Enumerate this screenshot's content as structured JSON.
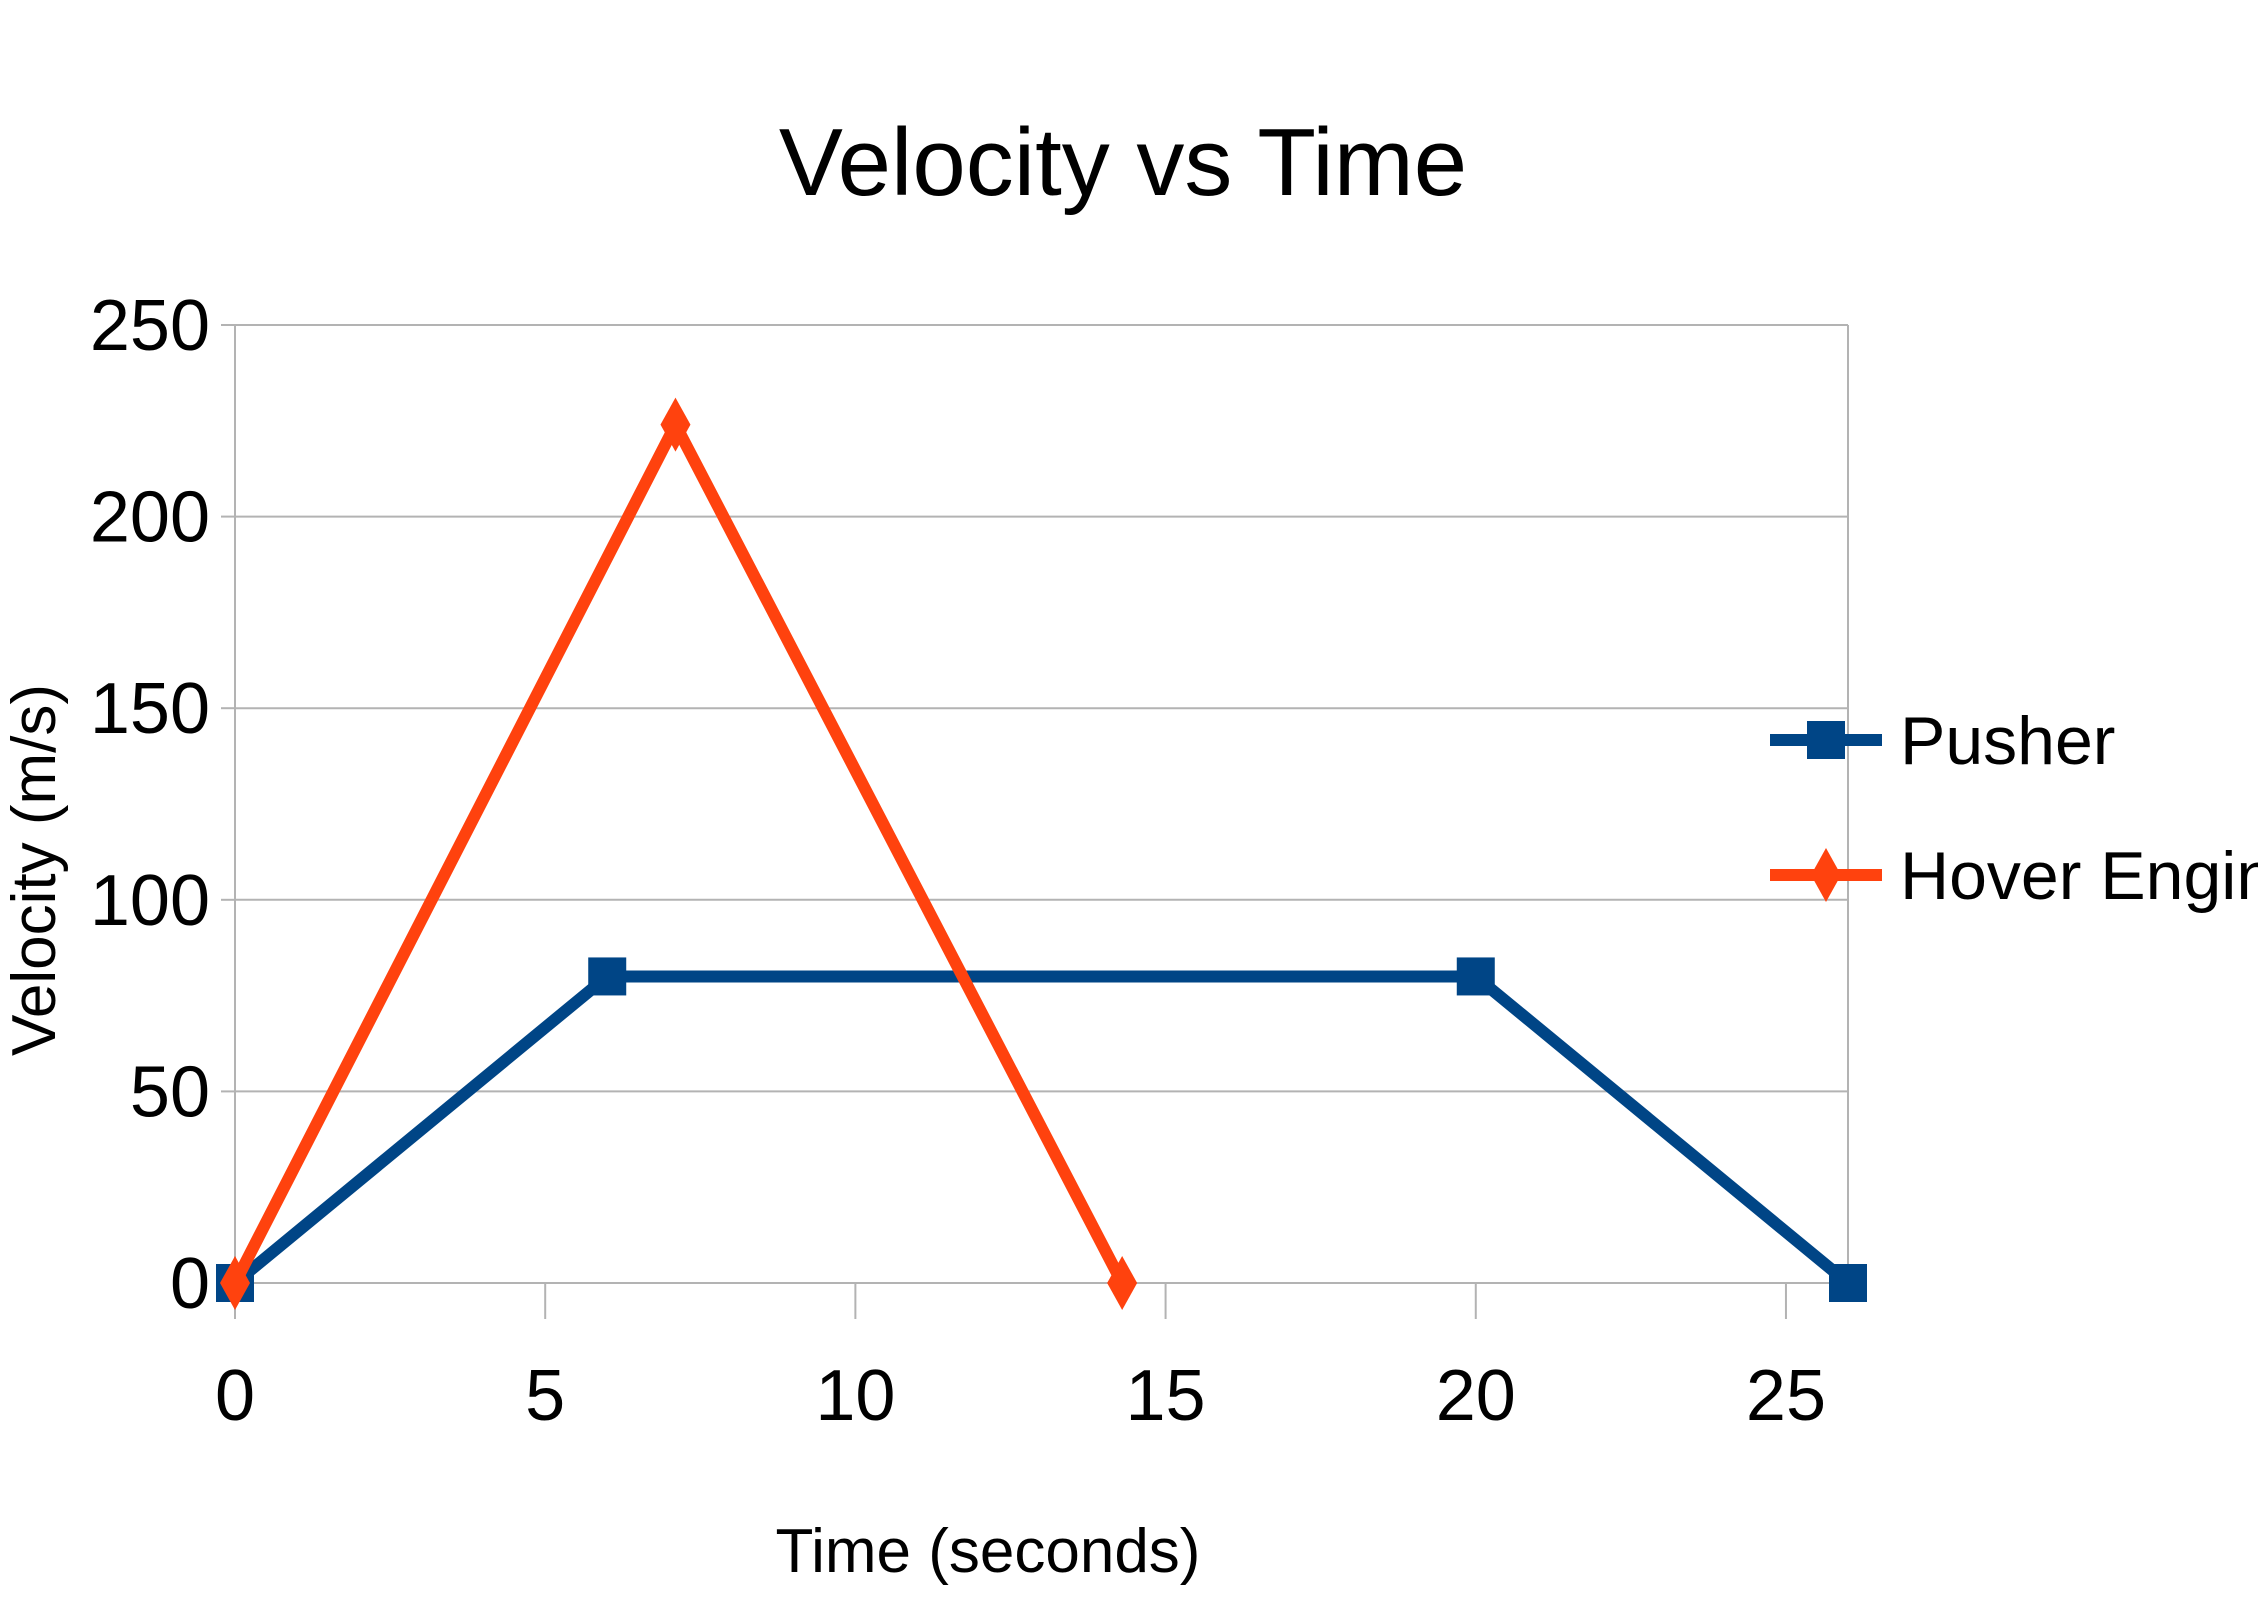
{
  "chart_data": {
    "type": "line",
    "title": "Velocity vs Time",
    "xlabel": "Time (seconds)",
    "ylabel": "Velocity (m/s)",
    "xlim": [
      0,
      26
    ],
    "ylim": [
      0,
      250
    ],
    "xticks": [
      0,
      5,
      10,
      15,
      20,
      25
    ],
    "yticks": [
      0,
      50,
      100,
      150,
      200,
      250
    ],
    "grid": "horizontal",
    "legend_position": "right",
    "series": [
      {
        "name": "Pusher",
        "color": "#004586",
        "marker": "square",
        "points": [
          {
            "x": 0,
            "y": 0
          },
          {
            "x": 6,
            "y": 80
          },
          {
            "x": 20,
            "y": 80
          },
          {
            "x": 26,
            "y": 0
          }
        ]
      },
      {
        "name": "Hover Engines",
        "color": "#ff420e",
        "marker": "diamond",
        "points": [
          {
            "x": 0,
            "y": 0
          },
          {
            "x": 7.1,
            "y": 224
          },
          {
            "x": 14.3,
            "y": 0
          }
        ]
      }
    ]
  }
}
